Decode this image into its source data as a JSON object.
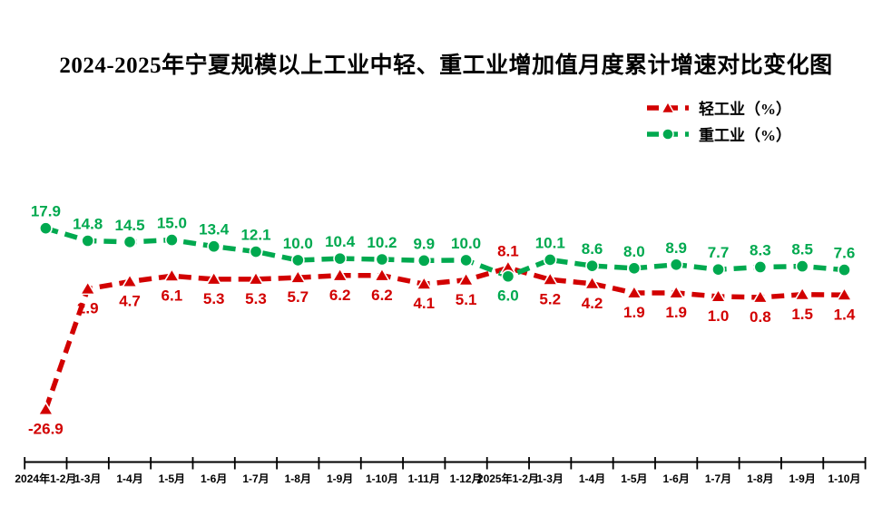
{
  "title": "2024-2025年宁夏规模以上工业中轻、重工业增加值月度累计增速对比变化图",
  "legend": {
    "position": "top-right",
    "items": [
      {
        "label": "轻工业（%）",
        "color": "#d20000",
        "marker": "triangle"
      },
      {
        "label": "重工业（%）",
        "color": "#00a94f",
        "marker": "circle"
      }
    ]
  },
  "chart_data": {
    "type": "line",
    "title": "2024-2025年宁夏规模以上工业中轻、重工业增加值月度累计增速对比变化图",
    "categories": [
      "2024年1-2月",
      "1-3月",
      "1-4月",
      "1-5月",
      "1-6月",
      "1-7月",
      "1-8月",
      "1-9月",
      "1-10月",
      "1-11月",
      "1-12月",
      "2025年1-2月",
      "1-3月",
      "1-4月",
      "1-5月",
      "1-6月",
      "1-7月",
      "1-8月",
      "1-9月",
      "1-10月"
    ],
    "series": [
      {
        "name": "轻工业（%）",
        "color": "#d20000",
        "marker": "triangle",
        "line_style": "dashed",
        "values": [
          -26.9,
          2.9,
          4.7,
          6.1,
          5.3,
          5.3,
          5.7,
          6.2,
          6.2,
          4.1,
          5.1,
          8.1,
          5.2,
          4.2,
          1.9,
          1.9,
          1.0,
          0.8,
          1.5,
          1.4
        ],
        "label_side": "below",
        "label_side_overrides": {
          "11": "above"
        }
      },
      {
        "name": "重工业（%）",
        "color": "#00a94f",
        "marker": "circle",
        "line_style": "dashed",
        "values": [
          17.9,
          14.8,
          14.5,
          15.0,
          13.4,
          12.1,
          10.0,
          10.4,
          10.2,
          9.9,
          10.0,
          6.0,
          10.1,
          8.6,
          8.0,
          8.9,
          7.7,
          8.3,
          8.5,
          7.6
        ],
        "label_side": "above",
        "label_side_overrides": {
          "11": "below"
        }
      }
    ],
    "data_labels": true,
    "label_decimals": 1,
    "xlabel": "",
    "ylabel": "",
    "ylim": [
      -40,
      25
    ],
    "grid": false,
    "y_axis_visible": false,
    "x_axis": {
      "line": true,
      "tick_style": "cross",
      "color": "#000000"
    },
    "legend_position": "top-right",
    "background": "#ffffff"
  }
}
